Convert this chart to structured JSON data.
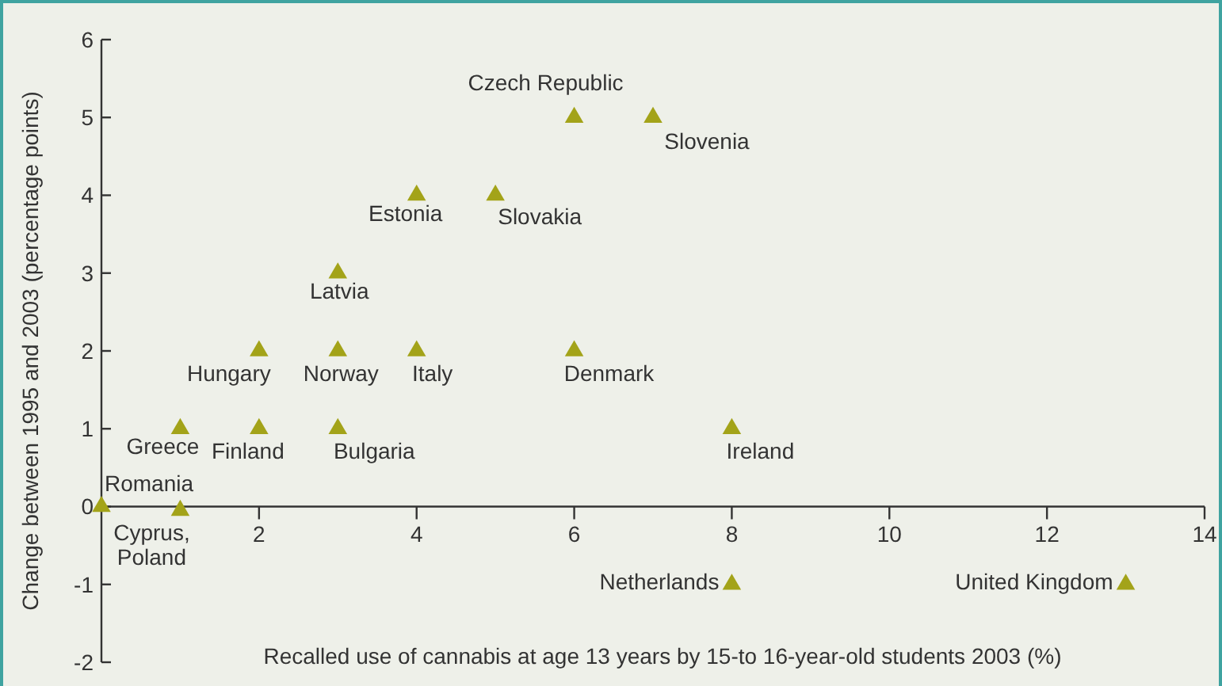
{
  "chart_data": {
    "type": "scatter",
    "xlabel": "Recalled use of cannabis at age 13 years by 15-to 16-year-old students 2003 (%)",
    "ylabel": "Change between 1995 and 2003 (percentage points)",
    "xlim": [
      0,
      14
    ],
    "ylim": [
      -2,
      6
    ],
    "xticks": [
      2,
      4,
      6,
      8,
      10,
      12,
      14
    ],
    "yticks": [
      -2,
      -1,
      0,
      1,
      2,
      3,
      4,
      5,
      6
    ],
    "marker": "triangle",
    "grid": false,
    "series": [
      {
        "color": "#a3a319",
        "x": [
          0,
          1,
          1,
          2,
          3,
          2,
          3,
          4,
          3,
          4,
          5,
          6,
          7,
          6,
          8,
          8,
          13
        ],
        "values": [
          0,
          -0.05,
          1,
          1,
          1,
          2,
          2,
          2,
          3,
          4,
          4,
          5,
          5,
          2,
          1,
          -1,
          -1
        ]
      }
    ],
    "annotations": [
      {
        "text": "Romania",
        "x": 0,
        "y": 0
      },
      {
        "text": "Cyprus,\nPoland",
        "x": 1,
        "y": -0.05
      },
      {
        "text": "Greece",
        "x": 1,
        "y": 1
      },
      {
        "text": "Finland",
        "x": 2,
        "y": 1
      },
      {
        "text": "Bulgaria",
        "x": 3,
        "y": 1
      },
      {
        "text": "Hungary",
        "x": 2,
        "y": 2
      },
      {
        "text": "Norway",
        "x": 3,
        "y": 2
      },
      {
        "text": "Italy",
        "x": 4,
        "y": 2
      },
      {
        "text": "Latvia",
        "x": 3,
        "y": 3
      },
      {
        "text": "Estonia",
        "x": 4,
        "y": 4
      },
      {
        "text": "Slovakia",
        "x": 5,
        "y": 4
      },
      {
        "text": "Czech Republic",
        "x": 6,
        "y": 5
      },
      {
        "text": "Slovenia",
        "x": 7,
        "y": 5
      },
      {
        "text": "Denmark",
        "x": 6,
        "y": 2
      },
      {
        "text": "Ireland",
        "x": 8,
        "y": 1
      },
      {
        "text": "Netherlands",
        "x": 8,
        "y": -1
      },
      {
        "text": "United Kingdom",
        "x": 13,
        "y": -1
      }
    ]
  }
}
